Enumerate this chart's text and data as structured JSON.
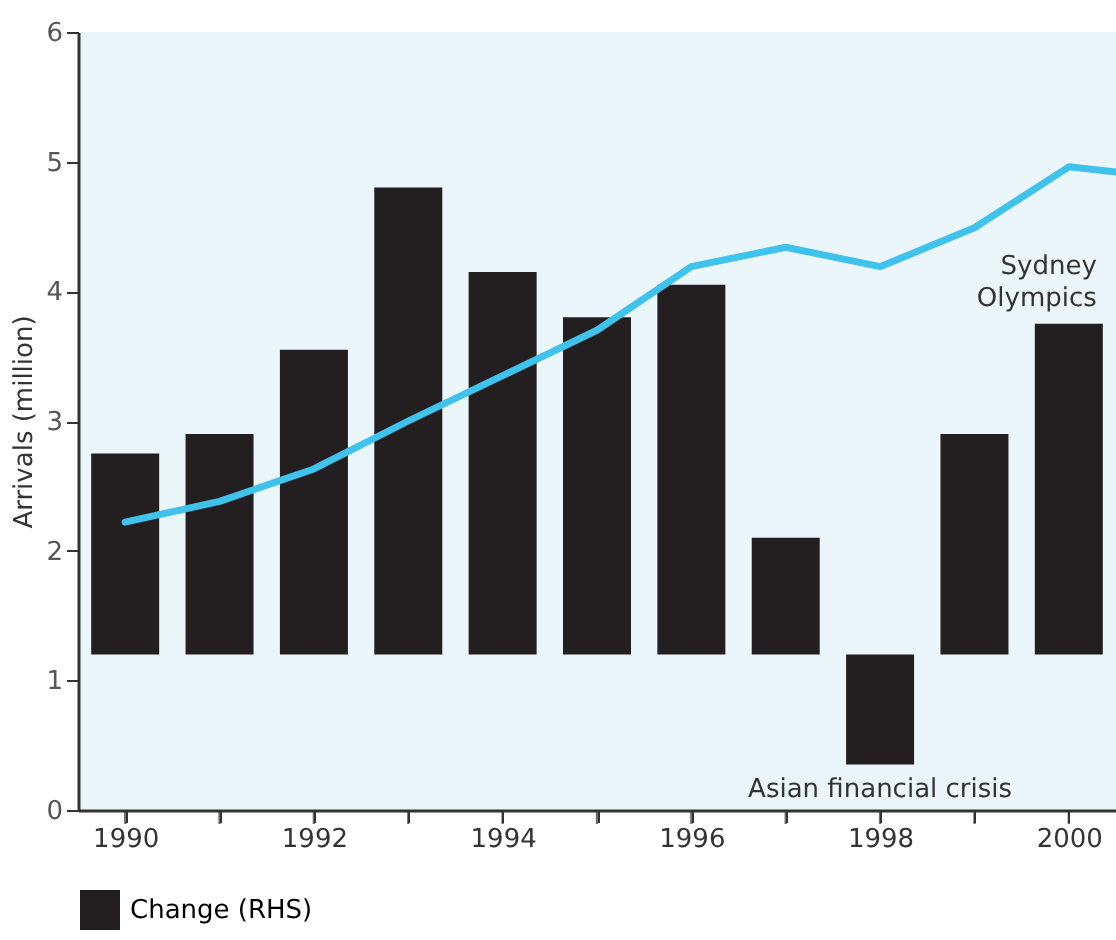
{
  "chart_data": {
    "type": "bar",
    "ylabel": "Arrivals (million)",
    "x": [
      1990,
      1991,
      1992,
      1993,
      1994,
      1995,
      1996,
      1997,
      1998,
      1999,
      2000
    ],
    "series": [
      {
        "name": "Change (RHS)",
        "color": "#231f20",
        "base": [
          1.2,
          1.2,
          1.2,
          1.2,
          1.2,
          1.2,
          1.2,
          1.2,
          1.2,
          1.2,
          1.2
        ],
        "values": [
          1.55,
          1.7,
          2.35,
          3.6,
          2.95,
          2.6,
          2.85,
          0.9,
          -0.85,
          1.7,
          2.55
        ]
      },
      {
        "color": "#3fc3ec",
        "type": "line",
        "x": [
          1990,
          1991,
          1992,
          1993,
          1994,
          1995,
          1996,
          1997,
          1998,
          1999,
          2000,
          2000.5
        ],
        "values": [
          2.22,
          2.38,
          2.63,
          3.0,
          3.35,
          3.7,
          4.19,
          4.34,
          4.19,
          4.49,
          4.96,
          4.92
        ]
      }
    ],
    "xlim": [
      1989.5,
      2000.5
    ],
    "xticks": [
      1990,
      {
        "value": 1991,
        "label": null
      },
      1992,
      {
        "value": 1993,
        "label": null
      },
      1994,
      {
        "value": 1995,
        "label": null
      },
      1996,
      {
        "value": 1997,
        "label": null
      },
      1998,
      {
        "value": 1999,
        "label": null
      },
      2000
    ],
    "ylim": [
      0,
      6
    ],
    "yticks": [
      0,
      1,
      2,
      3,
      4,
      5,
      6
    ],
    "annotations": [
      {
        "text": "Sydney Olympics",
        "x": 2000,
        "y": 3.75
      },
      {
        "text": "Asian financial crisis",
        "x": 1998,
        "y": 0.35
      }
    ],
    "legend": "bottom",
    "grid": false,
    "marker": "none",
    "line_style": "solid"
  }
}
